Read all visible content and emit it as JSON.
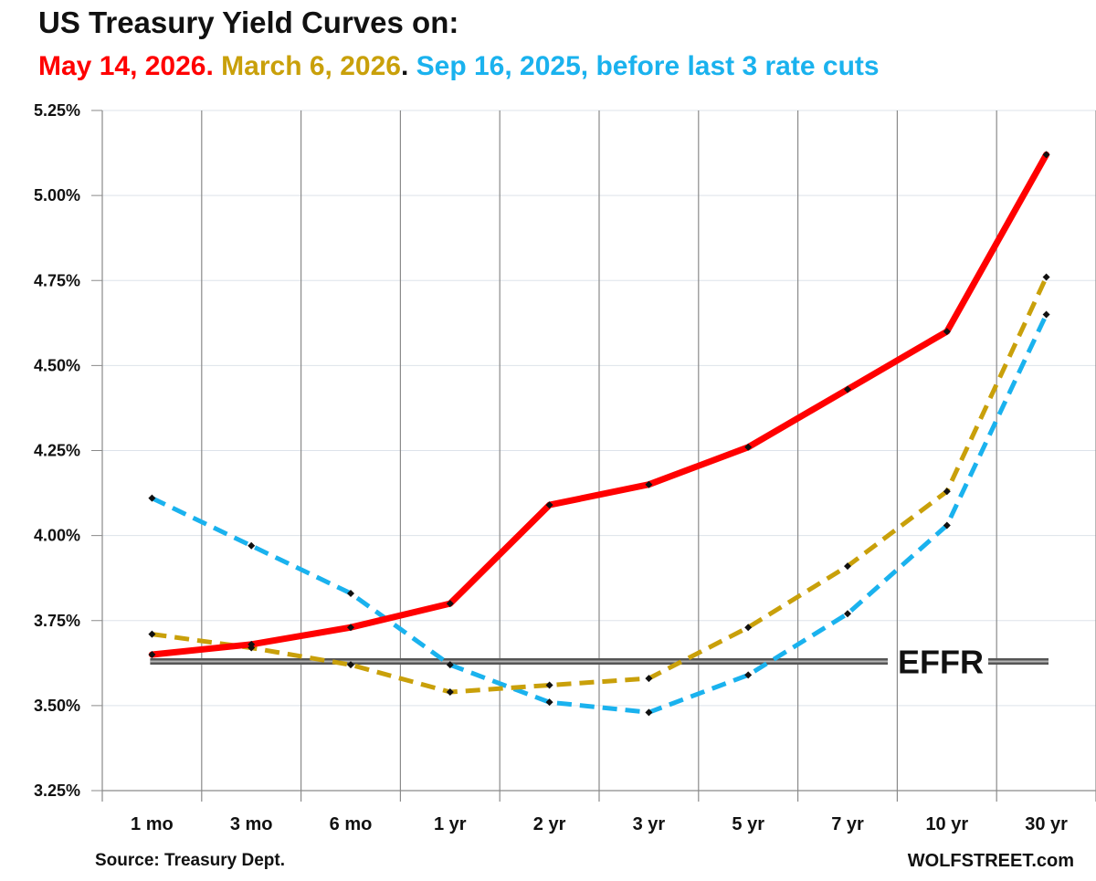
{
  "title": "US Treasury Yield Curves on:",
  "subtitle": {
    "s1": "May 14, 2026.",
    "s2": "March 6, 2026",
    "s3": ".",
    "s4": "Sep 16, 2025, before last 3 rate cuts"
  },
  "colors": {
    "may": "#ff0000",
    "march": "#c9a00a",
    "sep": "#1ab2ee",
    "effr": "#555555"
  },
  "footer": {
    "source": "Source: Treasury Dept.",
    "brand": "WOLFSTREET.com"
  },
  "chart_data": {
    "type": "line",
    "categories": [
      "1 mo",
      "3 mo",
      "6 mo",
      "1 yr",
      "2 yr",
      "3 yr",
      "5 yr",
      "7 yr",
      "10 yr",
      "30 yr"
    ],
    "ylim": [
      3.25,
      5.25
    ],
    "yticks": [
      3.25,
      3.5,
      3.75,
      4.0,
      4.25,
      4.5,
      4.75,
      5.0,
      5.25
    ],
    "ytick_labels": [
      "3.25%",
      "3.50%",
      "3.75%",
      "4.00%",
      "4.25%",
      "4.50%",
      "4.75%",
      "5.00%",
      "5.25%"
    ],
    "grid": "vertical",
    "series": [
      {
        "key": "may",
        "values": [
          3.65,
          3.68,
          3.73,
          3.8,
          4.09,
          4.15,
          4.26,
          4.43,
          4.6,
          5.12
        ],
        "style": "solid"
      },
      {
        "key": "march",
        "values": [
          3.71,
          3.67,
          3.62,
          3.54,
          3.56,
          3.58,
          3.73,
          3.91,
          4.13,
          4.76
        ],
        "style": "dashed"
      },
      {
        "key": "sep",
        "values": [
          4.11,
          3.97,
          3.83,
          3.62,
          3.51,
          3.48,
          3.59,
          3.77,
          4.03,
          4.65
        ],
        "style": "dashed"
      }
    ],
    "reference_line": {
      "label": "EFFR",
      "value": 3.63
    }
  }
}
